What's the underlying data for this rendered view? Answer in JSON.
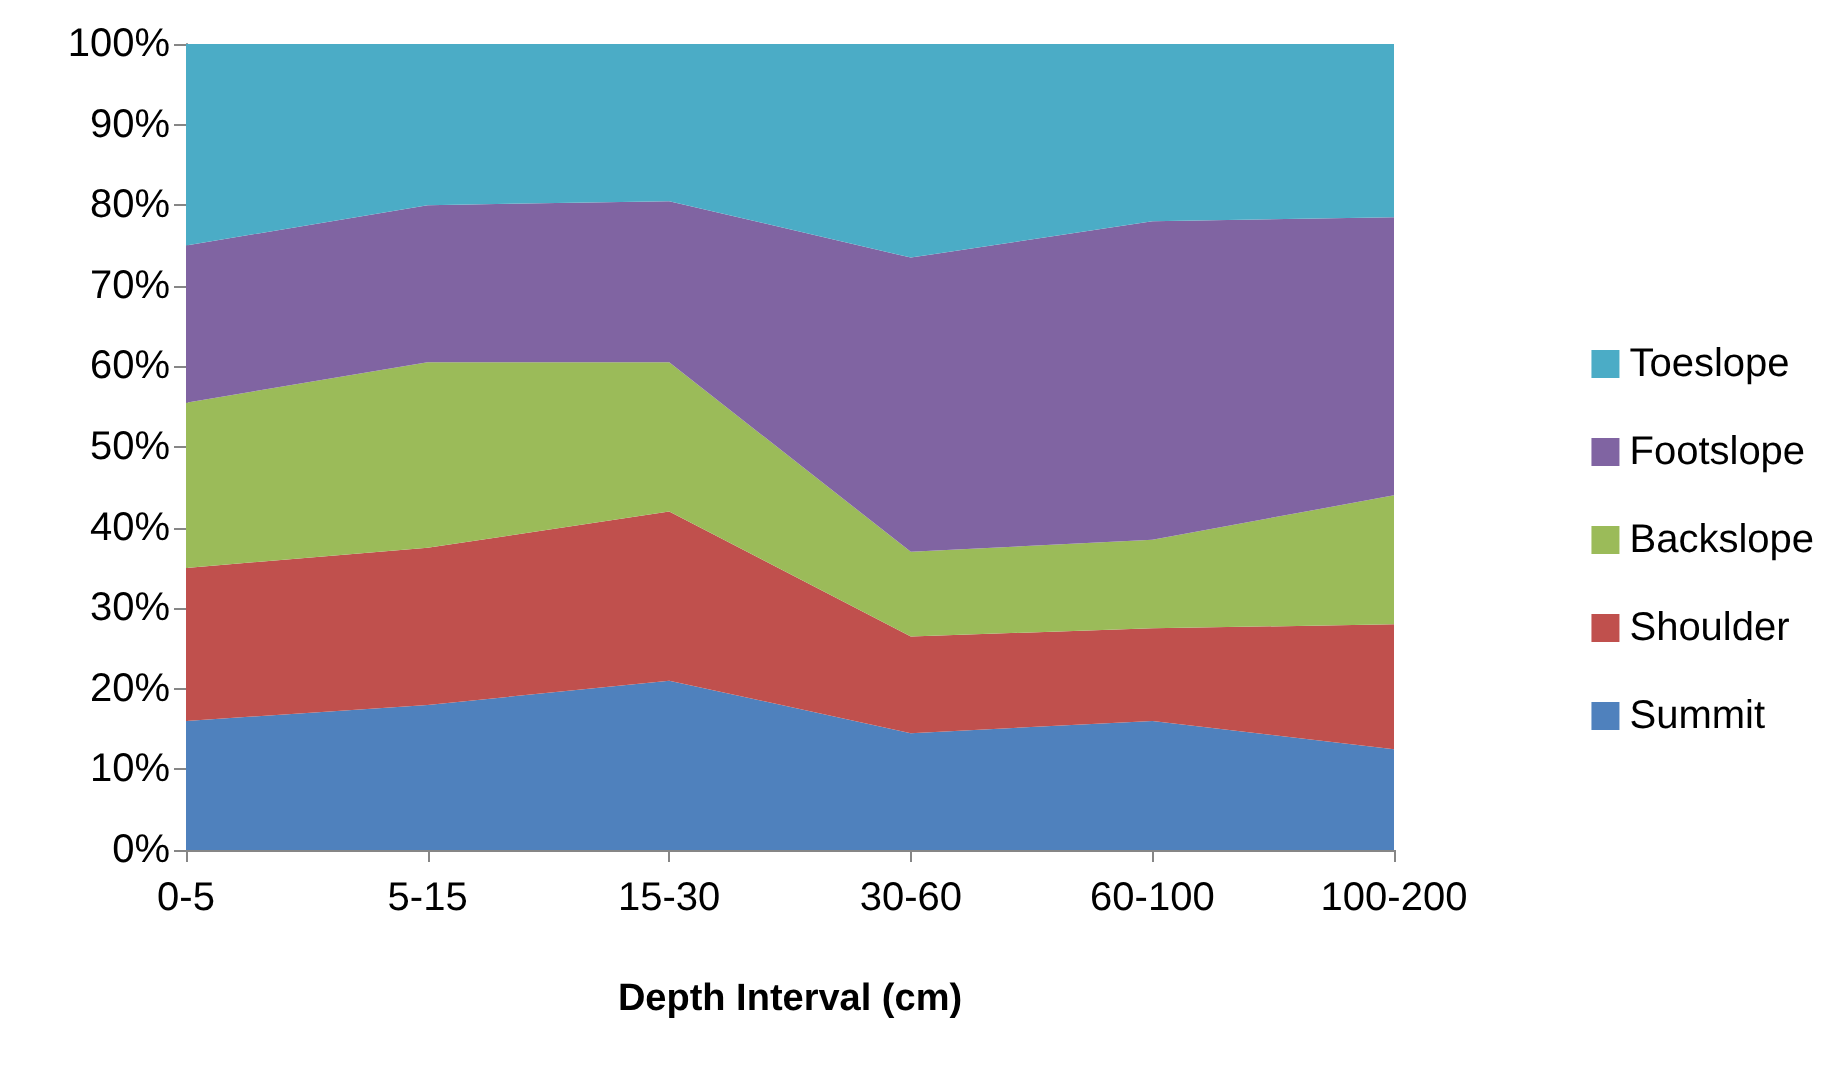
{
  "chart_data": {
    "type": "area",
    "stacked": true,
    "xlabel": "Depth Interval (cm)",
    "categories": [
      "0-5",
      "5-15",
      "15-30",
      "30-60",
      "60-100",
      "100-200"
    ],
    "series": [
      {
        "name": "Summit",
        "color": "#4f81bd",
        "values": [
          16,
          18,
          21,
          14.5,
          16,
          12.5
        ]
      },
      {
        "name": "Shoulder",
        "color": "#c0504d",
        "values": [
          19,
          19.5,
          21,
          12,
          11.5,
          15.5
        ]
      },
      {
        "name": "Backslope",
        "color": "#9bbb59",
        "values": [
          20.5,
          23,
          18.5,
          10.5,
          11,
          16
        ]
      },
      {
        "name": "Footslope",
        "color": "#8064a2",
        "values": [
          19.5,
          19.5,
          20,
          36.5,
          39.5,
          34.5
        ]
      },
      {
        "name": "Toeslope",
        "color": "#4bacc6",
        "values": [
          25,
          20,
          19.5,
          26.5,
          22,
          21.5
        ]
      }
    ],
    "ylim": [
      0,
      100
    ],
    "yticks": [
      {
        "value": 0,
        "label": "0%"
      },
      {
        "value": 10,
        "label": "10%"
      },
      {
        "value": 20,
        "label": "20%"
      },
      {
        "value": 30,
        "label": "30%"
      },
      {
        "value": 40,
        "label": "40%"
      },
      {
        "value": 50,
        "label": "50%"
      },
      {
        "value": 60,
        "label": "60%"
      },
      {
        "value": 70,
        "label": "70%"
      },
      {
        "value": 80,
        "label": "80%"
      },
      {
        "value": 90,
        "label": "90%"
      },
      {
        "value": 100,
        "label": "100%"
      }
    ],
    "grid": false,
    "legend": "right"
  }
}
